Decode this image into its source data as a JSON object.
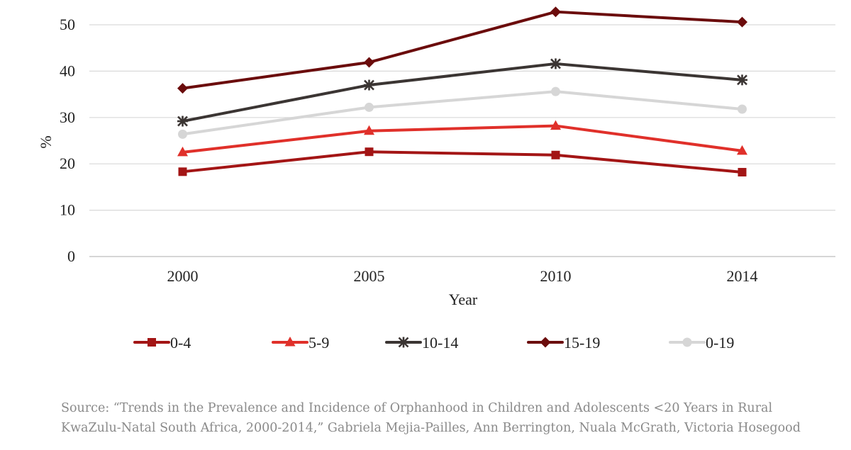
{
  "chart_data": {
    "type": "line",
    "categories": [
      "2000",
      "2005",
      "2010",
      "2014"
    ],
    "xlabel": "Year",
    "ylabel": "%",
    "ylim": [
      0,
      50
    ],
    "yticks": [
      0,
      10,
      20,
      30,
      40,
      50
    ],
    "grid": true,
    "legend_position": "bottom",
    "series": [
      {
        "name": "0-4",
        "values": [
          18.3,
          22.6,
          21.9,
          18.2
        ],
        "color": "#a31515",
        "marker": "square"
      },
      {
        "name": "5-9",
        "values": [
          22.5,
          27.1,
          28.2,
          22.8
        ],
        "color": "#e0302a",
        "marker": "triangle"
      },
      {
        "name": "10-14",
        "values": [
          29.2,
          37.0,
          41.6,
          38.1
        ],
        "color": "#3b3533",
        "marker": "star"
      },
      {
        "name": "15-19",
        "values": [
          36.3,
          41.9,
          52.8,
          50.6
        ],
        "color": "#6b0c0c",
        "marker": "diamond"
      },
      {
        "name": "0-19",
        "values": [
          26.4,
          32.2,
          35.6,
          31.8
        ],
        "color": "#d6d6d6",
        "marker": "circle"
      }
    ]
  },
  "source": {
    "line1": "Source: “Trends in the Prevalence and Incidence of Orphanhood in Children and Adolescents <20 Years in Rural",
    "line2": "KwaZulu-Natal South Africa, 2000-2014,” Gabriela Mejia-Pailles, Ann Berrington, Nuala McGrath, Victoria Hosegood"
  }
}
